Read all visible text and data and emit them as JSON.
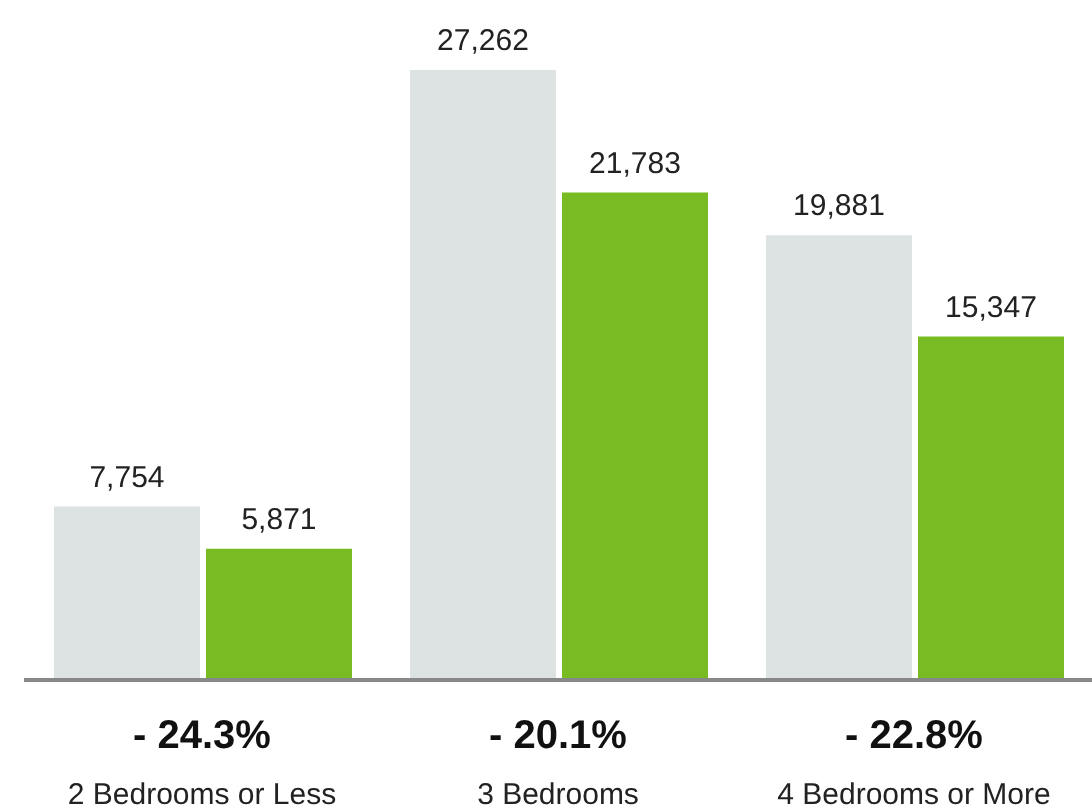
{
  "chart_data": {
    "type": "bar",
    "categories": [
      "2 Bedrooms or Less",
      "3 Bedrooms",
      "4 Bedrooms or More"
    ],
    "series": [
      {
        "color": "#dde2e2",
        "values": [
          7754,
          27262,
          19881
        ],
        "value_labels": [
          "7,754",
          "27,262",
          "19,881"
        ]
      },
      {
        "color": "#78bb22",
        "values": [
          5871,
          21783,
          15347
        ],
        "value_labels": [
          "5,871",
          "21,783",
          "15,347"
        ]
      }
    ],
    "annotations": [
      "- 24.3%",
      "- 20.1%",
      "- 22.8%"
    ]
  }
}
